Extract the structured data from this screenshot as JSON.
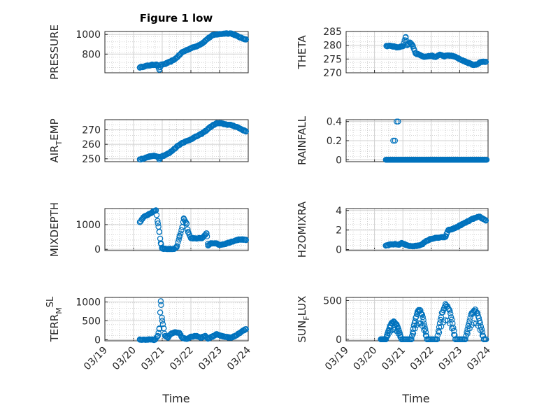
{
  "colors": {
    "series": "#0072BD",
    "axis": "#262626"
  },
  "chart_data": [
    {
      "id": "pressure",
      "type": "scatter",
      "title": "Figure 1 low",
      "ylabel": "PRESSURE",
      "ylim": [
        610,
        1030
      ],
      "yticks": [
        800,
        1000
      ],
      "xlim": [
        0,
        5
      ],
      "x": [],
      "y": [],
      "anchors": [
        [
          1.22,
          665
        ],
        [
          1.45,
          680
        ],
        [
          1.65,
          690
        ],
        [
          1.8,
          695
        ],
        [
          1.85,
          680
        ],
        [
          1.9,
          640
        ],
        [
          1.95,
          690
        ],
        [
          2.1,
          700
        ],
        [
          2.3,
          725
        ],
        [
          2.45,
          750
        ],
        [
          2.6,
          790
        ],
        [
          2.7,
          820
        ],
        [
          2.85,
          840
        ],
        [
          3.0,
          860
        ],
        [
          3.2,
          880
        ],
        [
          3.4,
          910
        ],
        [
          3.6,
          960
        ],
        [
          3.75,
          990
        ],
        [
          3.9,
          1000
        ],
        [
          4.2,
          1010
        ],
        [
          4.4,
          1010
        ],
        [
          4.5,
          1000
        ],
        [
          4.6,
          985
        ],
        [
          4.75,
          965
        ],
        [
          4.85,
          955
        ],
        [
          4.92,
          950
        ]
      ]
    },
    {
      "id": "theta",
      "type": "scatter",
      "title": "",
      "ylabel": "THETA",
      "ylim": [
        270,
        285
      ],
      "yticks": [
        270,
        275,
        280,
        285
      ],
      "xlim": [
        0,
        5
      ],
      "x": [],
      "y": [],
      "anchors": [
        [
          1.42,
          279.7
        ],
        [
          1.55,
          279.8
        ],
        [
          1.7,
          279.5
        ],
        [
          1.8,
          279.2
        ],
        [
          1.9,
          279.4
        ],
        [
          2.0,
          279.6
        ],
        [
          2.1,
          283
        ],
        [
          2.15,
          280
        ],
        [
          2.25,
          281
        ],
        [
          2.35,
          279.8
        ],
        [
          2.45,
          277
        ],
        [
          2.6,
          276.5
        ],
        [
          2.75,
          275.8
        ],
        [
          2.9,
          276
        ],
        [
          3.0,
          276.2
        ],
        [
          3.15,
          275.7
        ],
        [
          3.3,
          276.6
        ],
        [
          3.45,
          276
        ],
        [
          3.6,
          276.3
        ],
        [
          3.8,
          276
        ],
        [
          3.95,
          275.2
        ],
        [
          4.1,
          274.5
        ],
        [
          4.25,
          273.8
        ],
        [
          4.4,
          273.2
        ],
        [
          4.5,
          272.8
        ],
        [
          4.6,
          273
        ],
        [
          4.7,
          273.7
        ],
        [
          4.8,
          274
        ],
        [
          4.92,
          274
        ]
      ]
    },
    {
      "id": "airtemp",
      "type": "scatter",
      "title": "",
      "ylabel": "AIR",
      "ylabel_sub": "T",
      "ylabel_tail": "EMP",
      "ylim": [
        248,
        277
      ],
      "yticks": [
        250,
        260,
        270
      ],
      "xlim": [
        0,
        5
      ],
      "x": [],
      "y": [],
      "anchors": [
        [
          1.22,
          249.5
        ],
        [
          1.4,
          250.5
        ],
        [
          1.55,
          251.5
        ],
        [
          1.7,
          252
        ],
        [
          1.85,
          251.5
        ],
        [
          1.9,
          249.5
        ],
        [
          1.95,
          251.5
        ],
        [
          2.1,
          252.5
        ],
        [
          2.25,
          254
        ],
        [
          2.4,
          256.5
        ],
        [
          2.55,
          259
        ],
        [
          2.7,
          261
        ],
        [
          2.9,
          262.5
        ],
        [
          3.05,
          264
        ],
        [
          3.2,
          265.5
        ],
        [
          3.35,
          267
        ],
        [
          3.5,
          269
        ],
        [
          3.65,
          271.5
        ],
        [
          3.8,
          273.5
        ],
        [
          3.9,
          274.5
        ],
        [
          4.0,
          274.5
        ],
        [
          4.15,
          274
        ],
        [
          4.3,
          273.5
        ],
        [
          4.45,
          273
        ],
        [
          4.6,
          272
        ],
        [
          4.75,
          270.5
        ],
        [
          4.85,
          269.5
        ],
        [
          4.92,
          269
        ]
      ]
    },
    {
      "id": "rainfall",
      "type": "scatter",
      "title": "",
      "ylabel": "RAINFALL",
      "ylim": [
        -0.02,
        0.42
      ],
      "yticks": [
        0,
        0.2,
        0.4
      ],
      "xlim": [
        0,
        5
      ],
      "x": [],
      "y": [],
      "spikes": [
        [
          1.66,
          0.2
        ],
        [
          1.72,
          0.2
        ],
        [
          1.78,
          0.4
        ],
        [
          1.83,
          0.4
        ]
      ],
      "baseline_range": [
        1.4,
        4.95
      ]
    },
    {
      "id": "mixdepth",
      "type": "scatter",
      "title": "",
      "ylabel": "MIXDEPTH",
      "ylim": [
        -50,
        1650
      ],
      "yticks": [
        0,
        1000
      ],
      "xlim": [
        0,
        5
      ],
      "x": [],
      "y": [],
      "anchors": [
        [
          1.22,
          1100
        ],
        [
          1.35,
          1300
        ],
        [
          1.5,
          1400
        ],
        [
          1.65,
          1500
        ],
        [
          1.78,
          1580
        ],
        [
          1.85,
          1050
        ],
        [
          1.9,
          700
        ],
        [
          1.95,
          250
        ],
        [
          2.0,
          30
        ],
        [
          2.1,
          20
        ],
        [
          2.25,
          10
        ],
        [
          2.4,
          15
        ],
        [
          2.5,
          80
        ],
        [
          2.6,
          500
        ],
        [
          2.7,
          900
        ],
        [
          2.75,
          1250
        ],
        [
          2.85,
          1050
        ],
        [
          2.9,
          700
        ],
        [
          3.0,
          450
        ],
        [
          3.2,
          430
        ],
        [
          3.4,
          460
        ],
        [
          3.55,
          650
        ],
        [
          3.6,
          150
        ],
        [
          3.7,
          250
        ],
        [
          3.85,
          250
        ],
        [
          4.0,
          180
        ],
        [
          4.2,
          220
        ],
        [
          4.4,
          300
        ],
        [
          4.6,
          380
        ],
        [
          4.75,
          400
        ],
        [
          4.92,
          370
        ]
      ]
    },
    {
      "id": "h2omixra",
      "type": "scatter",
      "title": "",
      "ylabel": "H2OMIXRA",
      "ylim": [
        -0.1,
        4.2
      ],
      "yticks": [
        0,
        2,
        4
      ],
      "xlim": [
        0,
        5
      ],
      "x": [],
      "y": [],
      "anchors": [
        [
          1.4,
          0.4
        ],
        [
          1.55,
          0.5
        ],
        [
          1.7,
          0.55
        ],
        [
          1.85,
          0.5
        ],
        [
          1.95,
          0.65
        ],
        [
          2.1,
          0.5
        ],
        [
          2.25,
          0.35
        ],
        [
          2.4,
          0.35
        ],
        [
          2.55,
          0.4
        ],
        [
          2.7,
          0.6
        ],
        [
          2.85,
          0.9
        ],
        [
          3.0,
          1.1
        ],
        [
          3.2,
          1.2
        ],
        [
          3.4,
          1.25
        ],
        [
          3.5,
          1.3
        ],
        [
          3.6,
          2.0
        ],
        [
          3.75,
          2.1
        ],
        [
          3.9,
          2.3
        ],
        [
          4.1,
          2.6
        ],
        [
          4.3,
          2.9
        ],
        [
          4.5,
          3.2
        ],
        [
          4.7,
          3.35
        ],
        [
          4.85,
          3.1
        ],
        [
          4.92,
          3.0
        ]
      ]
    },
    {
      "id": "terrmsl",
      "type": "scatter",
      "title": "",
      "ylabel": "TERR",
      "ylabel_sub": "M",
      "ylabel_tail": "SL",
      "ylabel_tail_sup": true,
      "ylim": [
        -30,
        1120
      ],
      "yticks": [
        0,
        500,
        1000
      ],
      "xlim": [
        0,
        5
      ],
      "x": [],
      "y": [],
      "anchors": [
        [
          1.22,
          0
        ],
        [
          1.5,
          0
        ],
        [
          1.75,
          0
        ],
        [
          1.85,
          100
        ],
        [
          1.9,
          300
        ],
        [
          1.95,
          1020
        ],
        [
          2.0,
          500
        ],
        [
          2.05,
          300
        ],
        [
          2.1,
          100
        ],
        [
          2.2,
          50
        ],
        [
          2.3,
          150
        ],
        [
          2.45,
          200
        ],
        [
          2.6,
          180
        ],
        [
          2.7,
          50
        ],
        [
          2.85,
          20
        ],
        [
          3.0,
          80
        ],
        [
          3.2,
          100
        ],
        [
          3.35,
          50
        ],
        [
          3.5,
          100
        ],
        [
          3.6,
          30
        ],
        [
          3.75,
          80
        ],
        [
          3.9,
          150
        ],
        [
          4.05,
          100
        ],
        [
          4.2,
          80
        ],
        [
          4.4,
          50
        ],
        [
          4.55,
          100
        ],
        [
          4.7,
          180
        ],
        [
          4.85,
          250
        ],
        [
          4.92,
          280
        ]
      ]
    },
    {
      "id": "sunflux",
      "type": "scatter",
      "title": "",
      "ylabel": "SUN",
      "ylabel_sub": "F",
      "ylabel_tail": "LUX",
      "ylim": [
        -20,
        540
      ],
      "yticks": [
        0,
        500
      ],
      "xlim": [
        0,
        5
      ],
      "x": [],
      "y": [],
      "humps": [
        [
          1.4,
          1.95,
          230
        ],
        [
          2.3,
          2.85,
          380
        ],
        [
          3.2,
          3.85,
          450
        ],
        [
          4.2,
          4.85,
          380
        ]
      ]
    }
  ],
  "x_axis": {
    "ticks": [
      "03/19",
      "03/20",
      "03/21",
      "03/22",
      "03/23",
      "03/24"
    ],
    "label": "Time"
  }
}
